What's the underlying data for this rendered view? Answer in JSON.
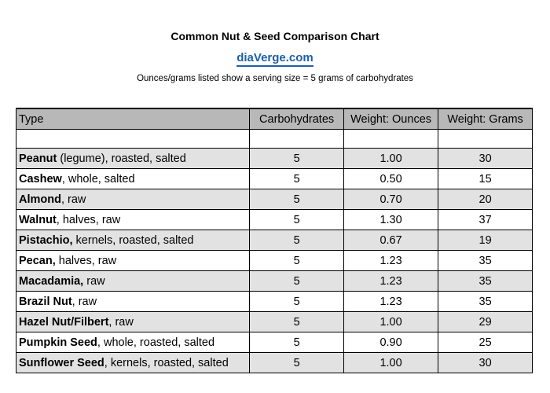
{
  "header": {
    "title": "Common Nut & Seed Comparison Chart",
    "site_link": "diaVerge.com",
    "subtitle": "Ounces/grams listed show a serving size = 5 grams of carbohydrates"
  },
  "table": {
    "columns": [
      "Type",
      "Carbohydrates",
      "Weight: Ounces",
      "Weight: Grams"
    ],
    "rows": [
      {
        "name": "Peanut",
        "detail": " (legume), roasted, salted",
        "carbs": "5",
        "ounces": "1.00",
        "grams": "30"
      },
      {
        "name": "Cashew",
        "detail": ", whole, salted",
        "carbs": "5",
        "ounces": "0.50",
        "grams": "15"
      },
      {
        "name": "Almond",
        "detail": ", raw",
        "carbs": "5",
        "ounces": "0.70",
        "grams": "20"
      },
      {
        "name": "Walnut",
        "detail": ", halves, raw",
        "carbs": "5",
        "ounces": "1.30",
        "grams": "37"
      },
      {
        "name": "Pistachio,",
        "detail": " kernels, roasted, salted",
        "carbs": "5",
        "ounces": "0.67",
        "grams": "19"
      },
      {
        "name": "Pecan,",
        "detail": " halves, raw",
        "carbs": "5",
        "ounces": "1.23",
        "grams": "35"
      },
      {
        "name": "Macadamia,",
        "detail": " raw",
        "carbs": "5",
        "ounces": "1.23",
        "grams": "35"
      },
      {
        "name": "Brazil Nut",
        "detail": ", raw",
        "carbs": "5",
        "ounces": "1.23",
        "grams": "35"
      },
      {
        "name": "Hazel Nut/Filbert",
        "detail": ", raw",
        "carbs": "5",
        "ounces": "1.00",
        "grams": "29"
      },
      {
        "name": "Pumpkin Seed",
        "detail": ", whole, roasted, salted",
        "carbs": "5",
        "ounces": "0.90",
        "grams": "25"
      },
      {
        "name": "Sunflower Seed",
        "detail": ", kernels, roasted, salted",
        "carbs": "5",
        "ounces": "1.00",
        "grams": "30"
      }
    ]
  },
  "colors": {
    "header_fill": "#b8b8b8",
    "shaded_row": "#e2e2e2",
    "link": "#1f5fa8"
  }
}
